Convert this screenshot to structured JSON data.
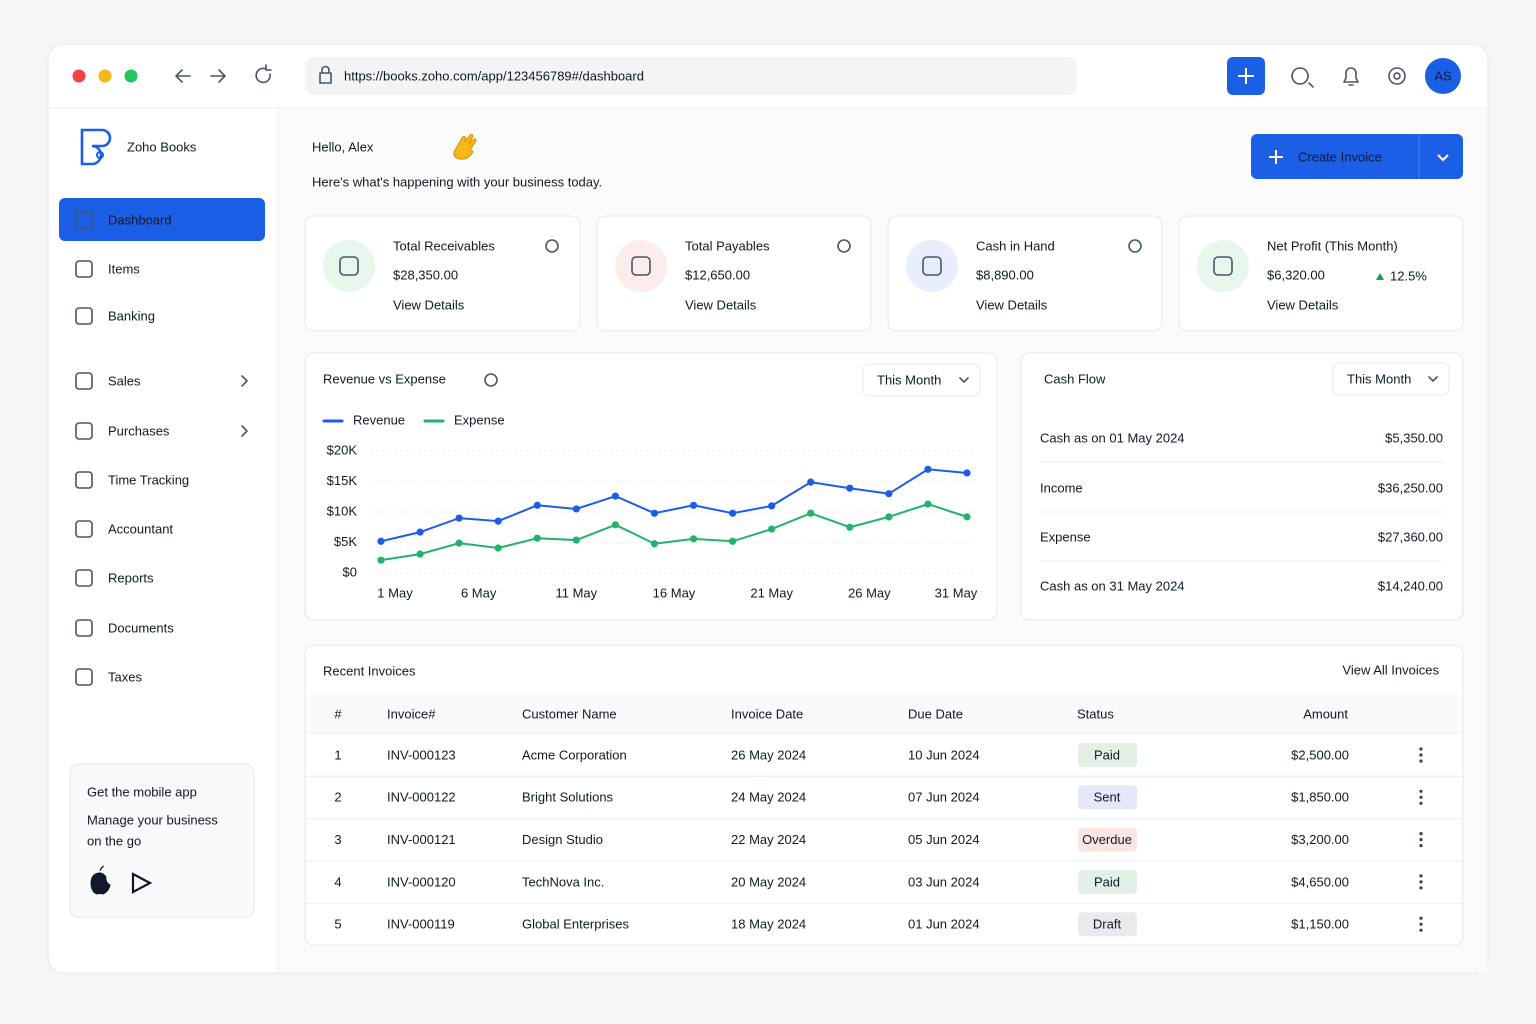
{
  "browser": {
    "url": "https://books.zoho.com/app/123456789#/dashboard",
    "avatar": "AS"
  },
  "sidebar": {
    "brand": "Zoho Books",
    "active": 0,
    "nav": [
      "Dashboard",
      "Items",
      "Banking",
      "Sales",
      "Purchases",
      "Time Tracking",
      "Accountant",
      "Reports",
      "Documents",
      "Taxes"
    ],
    "mobile_app": {
      "title": "Get the mobile app",
      "text": [
        "Manage your business",
        "on the go"
      ]
    }
  },
  "header": {
    "greeting": "Hello, Alex",
    "subtitle": "Here's what's happening with your business today.",
    "button": "Create Invoice"
  },
  "cards": [
    {
      "label": "Total Receivables",
      "value": "$28,350.00",
      "link": "View Details"
    },
    {
      "label": "Total Payables",
      "value": "$12,650.00",
      "link": "View Details"
    },
    {
      "label": "Cash in Hand",
      "value": "$8,890.00",
      "link": "View Details"
    },
    {
      "label": "Net Profit (This Month)",
      "value": "$6,320.00",
      "change": "12.5%",
      "link": "View Details"
    }
  ],
  "revenue_chart": {
    "type": "line",
    "title": "Revenue vs Expense",
    "filter": "This Month",
    "x": [
      1,
      3,
      5,
      7,
      9,
      11,
      13,
      15,
      17,
      19,
      21,
      23,
      25,
      27,
      29,
      31
    ],
    "xlim": [
      1,
      31
    ],
    "xticks": [
      {
        "value": 1,
        "label": "1 May"
      },
      {
        "value": 6,
        "label": "6 May"
      },
      {
        "value": 11,
        "label": "11 May"
      },
      {
        "value": 16,
        "label": "16 May"
      },
      {
        "value": 21,
        "label": "21 May"
      },
      {
        "value": 26,
        "label": "26 May"
      },
      {
        "value": 31,
        "label": "31 May"
      }
    ],
    "ylim": [
      0,
      20000
    ],
    "yticks": [
      {
        "value": 0,
        "label": "$0"
      },
      {
        "value": 5000,
        "label": "$5K"
      },
      {
        "value": 10000,
        "label": "$10K"
      },
      {
        "value": 15000,
        "label": "$15K"
      },
      {
        "value": 20000,
        "label": "$20K"
      }
    ],
    "grid": true,
    "series": [
      {
        "name": "Revenue",
        "color": "#1d5ce6",
        "values": [
          5200,
          6700,
          9000,
          8500,
          11100,
          10500,
          12600,
          9800,
          11100,
          9800,
          11000,
          14900,
          13900,
          13000,
          17000,
          16400
        ]
      },
      {
        "name": "Expense",
        "color": "#22b36b",
        "values": [
          2100,
          3100,
          4900,
          4100,
          5700,
          5400,
          7900,
          4800,
          5600,
          5200,
          7200,
          9800,
          7500,
          9200,
          11300,
          9200
        ]
      }
    ]
  },
  "cash_flow": {
    "title": "Cash Flow",
    "filter": "This Month",
    "rows": [
      {
        "label": "Cash as on 01 May 2024",
        "value": "$5,350.00",
        "color": "#111827"
      },
      {
        "label": "Income",
        "value": "$36,250.00",
        "color": "#16a34a"
      },
      {
        "label": "Expense",
        "value": "$27,360.00",
        "color": "#dc2626"
      },
      {
        "label": "Cash as on 31 May 2024",
        "value": "$14,240.00",
        "color": "#111827"
      }
    ]
  },
  "invoices": {
    "title": "Recent Invoices",
    "link": "View All Invoices",
    "columns": [
      "#",
      "Invoice#",
      "Customer Name",
      "Invoice Date",
      "Due Date",
      "Status",
      "Amount"
    ],
    "rows": [
      [
        "1",
        "INV-000123",
        "Acme Corporation",
        "26 May 2024",
        "10 Jun 2024",
        "Paid",
        "$2,500.00"
      ],
      [
        "2",
        "INV-000122",
        "Bright Solutions",
        "24 May 2024",
        "07 Jun 2024",
        "Sent",
        "$1,850.00"
      ],
      [
        "3",
        "INV-000121",
        "Design Studio",
        "22 May 2024",
        "05 Jun 2024",
        "Overdue",
        "$3,200.00"
      ],
      [
        "4",
        "INV-000120",
        "TechNova Inc.",
        "20 May 2024",
        "03 Jun 2024",
        "Paid",
        "$4,650.00"
      ],
      [
        "5",
        "INV-000119",
        "Global Enterprises",
        "18 May 2024",
        "01 Jun 2024",
        "Draft",
        "$1,150.00"
      ]
    ],
    "status_colors": [
      "#15803d",
      "#1d4ed8",
      "#dc2626",
      "#15803d",
      "#4b5563"
    ]
  }
}
